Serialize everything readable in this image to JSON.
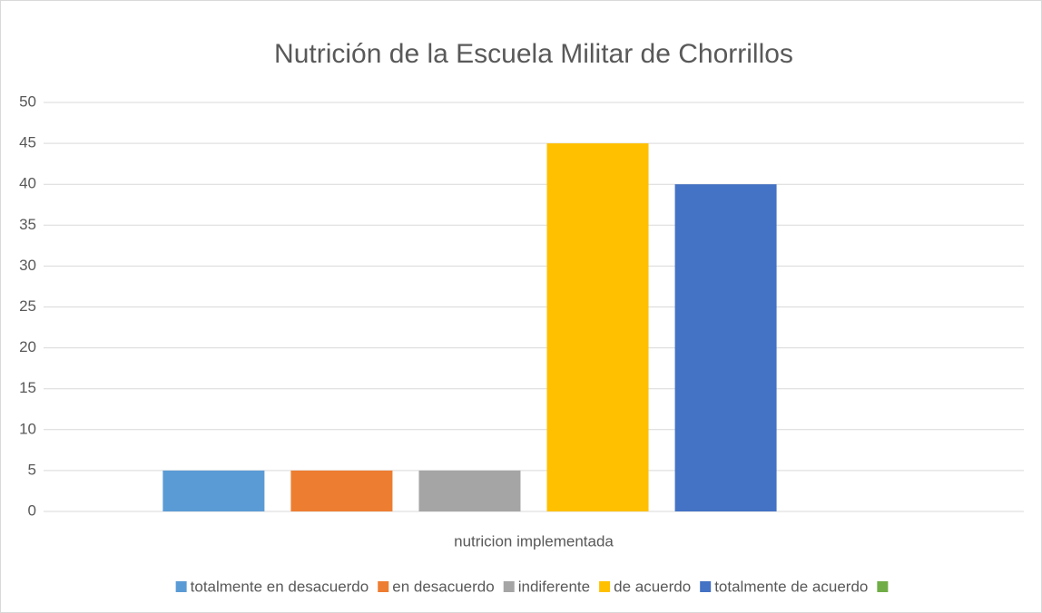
{
  "chart_data": {
    "type": "bar",
    "title": "Nutrición de la Escuela Militar de Chorrillos",
    "categories": [
      "nutricion implementada"
    ],
    "series": [
      {
        "name": "totalmente en desacuerdo",
        "color": "#5b9bd5",
        "values": [
          5
        ]
      },
      {
        "name": "en desacuerdo",
        "color": "#ed7d31",
        "values": [
          5
        ]
      },
      {
        "name": "indiferente",
        "color": "#a5a5a5",
        "values": [
          5
        ]
      },
      {
        "name": "de acuerdo",
        "color": "#ffc000",
        "values": [
          45
        ]
      },
      {
        "name": "totalmente de acuerdo",
        "color": "#4472c4",
        "values": [
          40
        ]
      },
      {
        "name": null,
        "color": "#70ad47",
        "values": [
          null
        ]
      }
    ],
    "ylim": [
      0,
      50
    ],
    "yticks": [
      0,
      5,
      10,
      15,
      20,
      25,
      30,
      35,
      40,
      45,
      50
    ],
    "grid": true,
    "legend": "bottom"
  }
}
